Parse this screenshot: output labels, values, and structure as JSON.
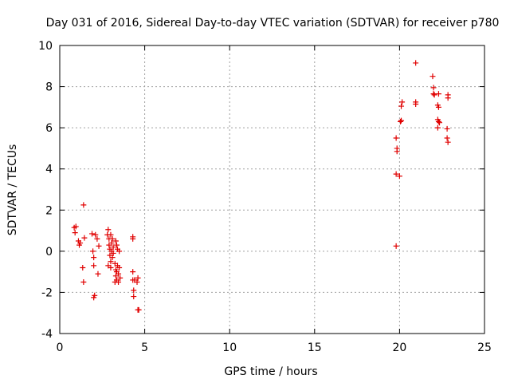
{
  "chart_data": {
    "type": "scatter",
    "title": "Day 031 of 2016, Sidereal Day-to-day VTEC variation (SDTVAR) for receiver p780",
    "xlabel": "GPS time / hours",
    "ylabel": "SDTVAR / TECUs",
    "xlim": [
      0,
      25
    ],
    "ylim": [
      -4,
      10
    ],
    "xticks": [
      0,
      5,
      10,
      15,
      20,
      25
    ],
    "yticks": [
      -4,
      -2,
      0,
      2,
      4,
      6,
      8,
      10
    ],
    "xtick_labels": [
      "0",
      "5",
      "10",
      "15",
      "20",
      "25"
    ],
    "ytick_labels": [
      "-4",
      "-2",
      "0",
      "2",
      "4",
      "6",
      "8",
      "10"
    ],
    "grid": true,
    "marker": "+",
    "color": "#e00000",
    "series": [
      {
        "name": "p780",
        "points": [
          [
            0.85,
            1.15
          ],
          [
            0.9,
            0.9
          ],
          [
            0.95,
            1.2
          ],
          [
            1.1,
            0.5
          ],
          [
            1.15,
            0.3
          ],
          [
            1.2,
            0.4
          ],
          [
            1.35,
            -0.8
          ],
          [
            1.4,
            2.25
          ],
          [
            1.45,
            0.65
          ],
          [
            1.4,
            -1.5
          ],
          [
            1.9,
            0.85
          ],
          [
            1.95,
            0.0
          ],
          [
            2.0,
            -0.3
          ],
          [
            2.0,
            -0.7
          ],
          [
            2.05,
            -2.15
          ],
          [
            2.0,
            -2.25
          ],
          [
            2.1,
            0.8
          ],
          [
            2.2,
            0.6
          ],
          [
            2.25,
            -1.1
          ],
          [
            2.3,
            0.25
          ],
          [
            2.8,
            0.8
          ],
          [
            2.85,
            1.05
          ],
          [
            2.9,
            0.6
          ],
          [
            2.9,
            0.3
          ],
          [
            2.95,
            0.1
          ],
          [
            2.95,
            -0.2
          ],
          [
            3.0,
            -0.5
          ],
          [
            3.0,
            0.8
          ],
          [
            3.05,
            0.4
          ],
          [
            3.05,
            0.0
          ],
          [
            3.1,
            -0.3
          ],
          [
            3.1,
            0.6
          ],
          [
            2.85,
            -0.7
          ],
          [
            3.0,
            -0.8
          ],
          [
            3.15,
            0.2
          ],
          [
            3.15,
            -0.1
          ],
          [
            3.25,
            -0.6
          ],
          [
            3.3,
            -0.9
          ],
          [
            3.3,
            -1.2
          ],
          [
            3.35,
            -1.4
          ],
          [
            3.35,
            -1.0
          ],
          [
            3.3,
            0.5
          ],
          [
            3.4,
            0.1
          ],
          [
            3.4,
            -0.7
          ],
          [
            3.45,
            -1.1
          ],
          [
            3.45,
            -1.5
          ],
          [
            3.5,
            -0.8
          ],
          [
            3.5,
            0.0
          ],
          [
            3.35,
            0.3
          ],
          [
            3.25,
            -1.5
          ],
          [
            3.55,
            -1.3
          ],
          [
            4.3,
            0.7
          ],
          [
            4.3,
            0.6
          ],
          [
            4.3,
            -1.0
          ],
          [
            4.3,
            -1.4
          ],
          [
            4.35,
            -1.9
          ],
          [
            4.35,
            -2.2
          ],
          [
            4.4,
            -1.4
          ],
          [
            4.55,
            -1.5
          ],
          [
            4.6,
            -1.3
          ],
          [
            4.6,
            -2.85
          ],
          [
            4.65,
            -2.85
          ],
          [
            19.8,
            0.25
          ],
          [
            19.8,
            3.75
          ],
          [
            19.8,
            5.5
          ],
          [
            19.85,
            4.85
          ],
          [
            19.85,
            5.0
          ],
          [
            20.0,
            3.65
          ],
          [
            20.05,
            6.3
          ],
          [
            20.1,
            6.35
          ],
          [
            20.1,
            7.05
          ],
          [
            20.15,
            7.25
          ],
          [
            20.95,
            9.15
          ],
          [
            20.95,
            7.15
          ],
          [
            20.95,
            7.25
          ],
          [
            21.95,
            8.5
          ],
          [
            22.0,
            7.95
          ],
          [
            22.0,
            7.65
          ],
          [
            22.05,
            7.6
          ],
          [
            22.3,
            7.65
          ],
          [
            22.25,
            7.1
          ],
          [
            22.3,
            7.0
          ],
          [
            22.25,
            6.4
          ],
          [
            22.3,
            6.3
          ],
          [
            22.25,
            6.0
          ],
          [
            22.35,
            6.25
          ],
          [
            22.85,
            7.6
          ],
          [
            22.85,
            7.45
          ],
          [
            22.8,
            5.95
          ],
          [
            22.8,
            5.5
          ],
          [
            22.85,
            5.3
          ]
        ]
      }
    ]
  }
}
